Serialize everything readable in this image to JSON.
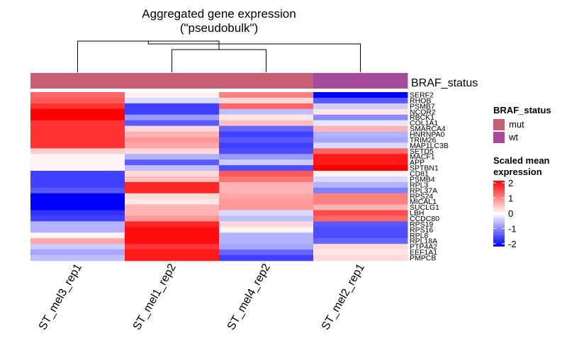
{
  "chart_data": {
    "type": "heatmap",
    "title_lines": [
      "Aggregated gene expression",
      "(\"pseudobulk\")"
    ],
    "columns": [
      "ST_mel3_rep1",
      "ST_mel1_rep2",
      "ST_mel4_rep2",
      "ST_mel2_rep1"
    ],
    "rows": [
      "SERF2",
      "RHOB",
      "PSMB7",
      "NCOR2",
      "RBCK1",
      "COL1A1",
      "SMARCA4",
      "HNRNPA0",
      "TRIM26",
      "MAP1LC3B",
      "SETD5",
      "MACF1",
      "APP",
      "SPTBN1",
      "CD81",
      "PSMB4",
      "RPL3",
      "RPL37A",
      "RPS24",
      "MICAL1",
      "SUCLG1",
      "LBH",
      "CCDC80",
      "RPS19",
      "RPS16",
      "RPL8",
      "RPL18A",
      "PTP4A2",
      "EEF1A1",
      "PMPCB"
    ],
    "values": [
      [
        1.2,
        0.1,
        1.0,
        -2.0
      ],
      [
        1.3,
        -0.3,
        0.3,
        -1.3
      ],
      [
        1.6,
        -1.5,
        1.2,
        -0.4
      ],
      [
        2.0,
        -1.5,
        -0.5,
        0.2
      ],
      [
        2.0,
        -0.8,
        0.2,
        -0.9
      ],
      [
        1.6,
        -1.3,
        0.5,
        -0.2
      ],
      [
        1.6,
        0.3,
        -1.2,
        0.6
      ],
      [
        1.6,
        0.6,
        -1.5,
        -0.6
      ],
      [
        1.6,
        0.8,
        -1.3,
        -0.7
      ],
      [
        1.6,
        0.7,
        -1.5,
        -0.3
      ],
      [
        0.4,
        0.3,
        -1.4,
        1.2
      ],
      [
        0.1,
        -0.6,
        -0.8,
        1.8
      ],
      [
        0.1,
        -1.3,
        -0.4,
        1.8
      ],
      [
        0.1,
        -0.5,
        -1.4,
        2.0
      ],
      [
        -1.5,
        0.3,
        1.3,
        0.1
      ],
      [
        -1.5,
        0.5,
        1.1,
        -0.3
      ],
      [
        -1.5,
        1.7,
        0.6,
        -0.6
      ],
      [
        -1.3,
        1.7,
        0.6,
        -1.0
      ],
      [
        -2.0,
        0.3,
        0.7,
        1.0
      ],
      [
        -2.0,
        0.2,
        0.8,
        1.0
      ],
      [
        -2.0,
        0.6,
        0.8,
        0.6
      ],
      [
        -1.6,
        0.6,
        -0.3,
        1.4
      ],
      [
        -1.5,
        0.8,
        -0.5,
        1.2
      ],
      [
        -0.6,
        1.7,
        0.3,
        -1.3
      ],
      [
        -0.6,
        1.9,
        0.1,
        -1.4
      ],
      [
        0.1,
        1.9,
        -0.6,
        -1.4
      ],
      [
        0.7,
        1.9,
        -0.6,
        -1.2
      ],
      [
        -0.4,
        1.6,
        -0.7,
        0.3
      ],
      [
        -0.7,
        1.8,
        -1.2,
        0.2
      ],
      [
        -0.5,
        1.8,
        -1.5,
        0.3
      ]
    ],
    "column_annotation": {
      "name": "BRAF_status",
      "values": [
        "mut",
        "mut",
        "mut",
        "wt"
      ],
      "legend": [
        {
          "label": "mut",
          "color": "#c95f75"
        },
        {
          "label": "wt",
          "color": "#a64a9b"
        }
      ]
    },
    "color_scale": {
      "title_lines": [
        "Scaled mean",
        "expression"
      ],
      "breaks": [
        2,
        1,
        0,
        -1,
        -2
      ],
      "low": "#0000ff",
      "mid": "#ffffff",
      "high": "#ff0000",
      "range": [
        -2,
        2
      ]
    },
    "dendrogram": {
      "merges": [
        [
          1,
          2
        ],
        [
          0,
          "1+2"
        ],
        [
          "0+1+2",
          3
        ]
      ]
    }
  }
}
